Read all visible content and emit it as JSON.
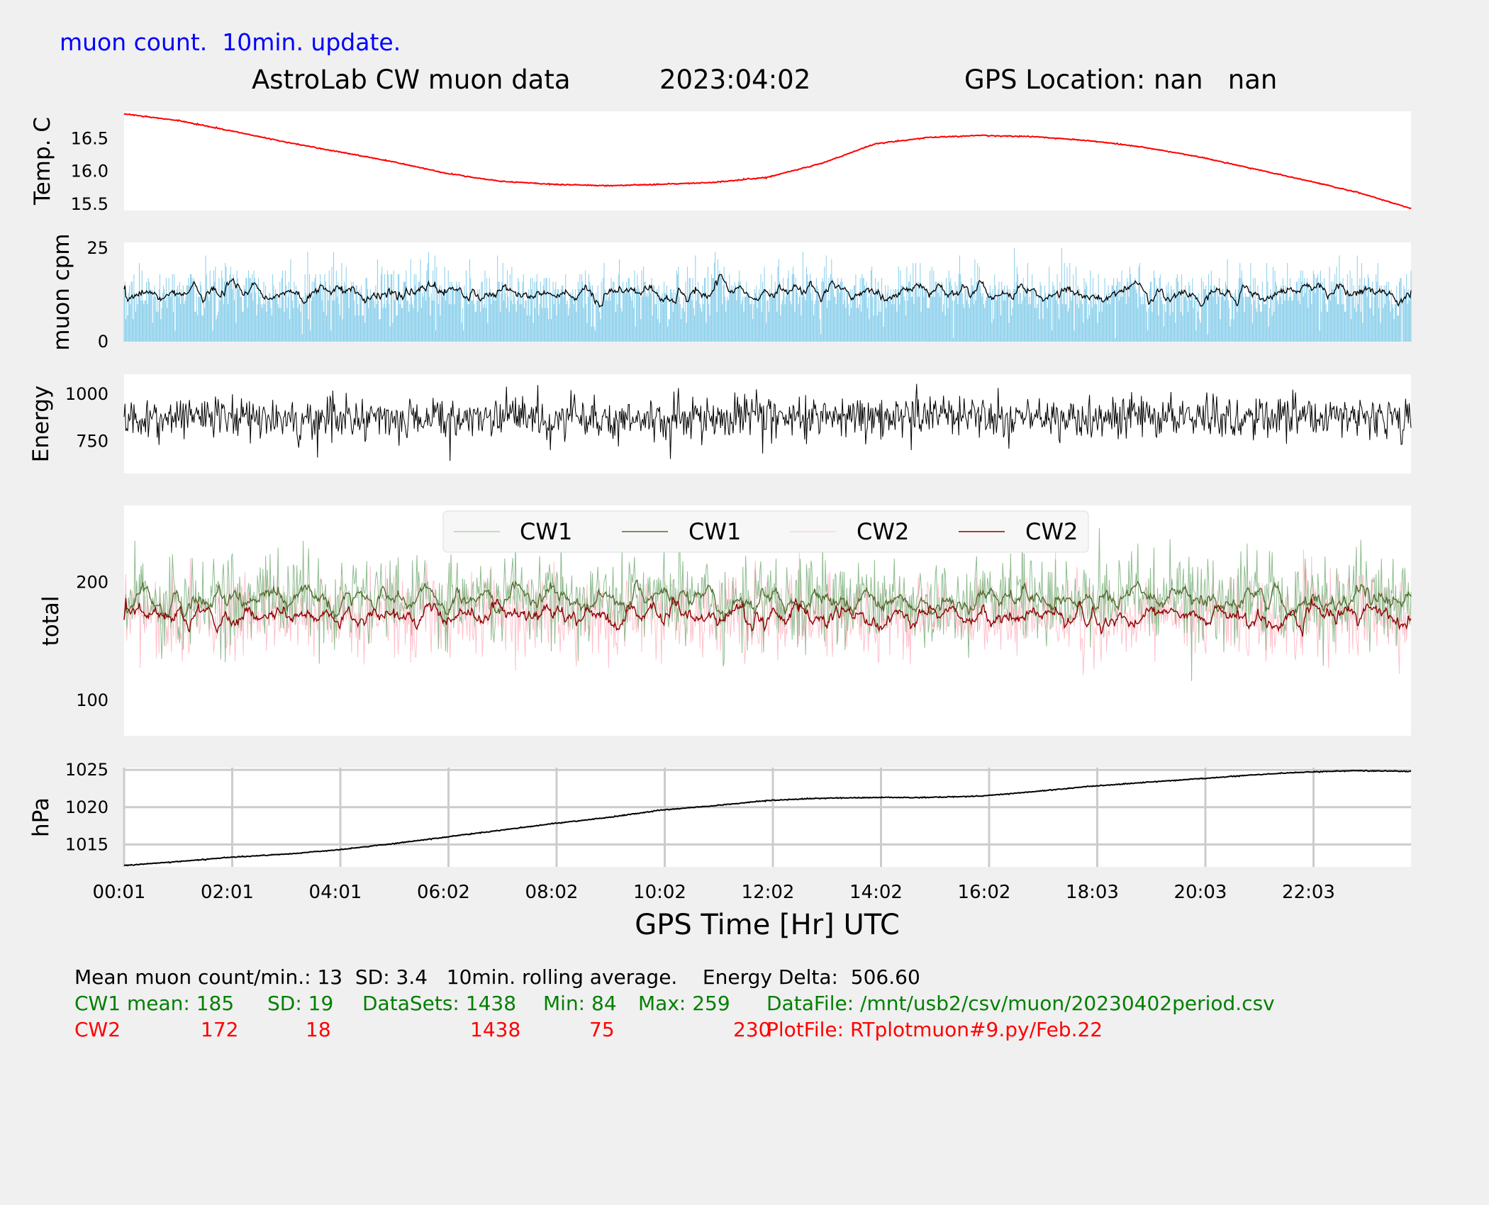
{
  "header": {
    "update_note": "muon count.  10min. update.",
    "title": "AstroLab CW muon data",
    "date": "2023:04:02",
    "gps_location": "GPS Location: nan   nan"
  },
  "colors": {
    "temp_line": "#ff0000",
    "muon_bars": "#87ceeb",
    "cw1_raw": "#8fbc8f",
    "cw1_avg": "#556b2f",
    "cw2_raw": "#ffc0cb",
    "cw2_avg": "#8b0000",
    "background": "#f0f0f0",
    "grid": "#cccccc",
    "footer_black": "#000000",
    "footer_green": "#008000",
    "footer_red": "#ff0000",
    "note_blue": "#0000ff"
  },
  "chart_data": [
    {
      "type": "line",
      "ylabel": "Temp. C",
      "yticks": [
        15.5,
        16.0,
        16.5
      ],
      "ylim": [
        15.4,
        16.92
      ],
      "x": [
        0,
        1,
        2,
        3,
        4,
        5,
        6,
        7,
        8,
        9,
        10,
        11,
        12,
        13,
        14,
        15,
        16,
        17,
        18,
        19,
        20,
        21,
        22,
        23,
        24
      ],
      "series": [
        {
          "values": [
            16.88,
            16.78,
            16.62,
            16.45,
            16.3,
            16.15,
            15.97,
            15.85,
            15.8,
            15.78,
            15.8,
            15.83,
            15.91,
            16.12,
            16.42,
            16.52,
            16.55,
            16.53,
            16.47,
            16.37,
            16.23,
            16.05,
            15.87,
            15.68,
            15.43
          ]
        }
      ]
    },
    {
      "type": "bar",
      "ylabel": "muon cpm",
      "yticks": [
        0,
        25
      ],
      "ylim": [
        0,
        26.5
      ],
      "mean": 13,
      "sd": 3.4,
      "rolling_window": "10min.",
      "series": [
        {
          "values": []
        },
        {
          "values": []
        }
      ]
    },
    {
      "type": "line",
      "ylabel": "Energy",
      "yticks": [
        750,
        1000
      ],
      "ylim": [
        580,
        1105
      ],
      "series": [
        {
          "values": []
        }
      ]
    },
    {
      "type": "line",
      "ylabel": "total",
      "yticks": [
        100,
        200
      ],
      "ylim": [
        70,
        265
      ],
      "legend": [
        "CW1",
        "CW1",
        "CW2",
        "CW2"
      ],
      "legend_position": "top-center",
      "series": [
        {
          "name": "CW1",
          "mean": 185,
          "sd": 19,
          "min": 84,
          "max": 259
        },
        {
          "name": "CW1"
        },
        {
          "name": "CW2",
          "mean": 172,
          "sd": 18,
          "min": 75,
          "max": 230
        },
        {
          "name": "CW2"
        }
      ]
    },
    {
      "type": "line",
      "ylabel": "hPa",
      "yticks": [
        1015,
        1020,
        1025
      ],
      "ylim": [
        1012.0,
        1025.3
      ],
      "grid": true,
      "x": [
        0,
        1,
        2,
        3,
        4,
        5,
        6,
        7,
        8,
        9,
        10,
        11,
        12,
        13,
        14,
        15,
        16,
        17,
        18,
        19,
        20,
        21,
        22,
        23,
        24
      ],
      "series": [
        {
          "values": [
            1012.2,
            1012.7,
            1013.3,
            1013.7,
            1014.3,
            1015.1,
            1016.0,
            1016.9,
            1017.8,
            1018.6,
            1019.6,
            1020.2,
            1020.9,
            1021.2,
            1021.3,
            1021.3,
            1021.5,
            1022.1,
            1022.8,
            1023.3,
            1023.8,
            1024.3,
            1024.7,
            1024.9,
            1024.8
          ]
        }
      ]
    }
  ],
  "xaxis": {
    "label": "GPS Time  [Hr] UTC",
    "ticks": [
      "00:01",
      "02:01",
      "04:01",
      "06:02",
      "08:02",
      "10:02",
      "12:02",
      "14:02",
      "16:02",
      "18:03",
      "20:03",
      "22:03"
    ]
  },
  "footer": {
    "line1": "Mean muon count/min.: 13  SD: 3.4   10min. rolling average.    Energy Delta:  506.60",
    "cw1_label": "CW1 mean: 185",
    "cw1_sd": "SD: 19",
    "cw1_datasets": "DataSets: 1438",
    "cw1_min": "Min: 84",
    "cw1_max": "Max: 259",
    "datafile": "DataFile: /mnt/usb2/csv/muon/20230402period.csv",
    "cw2_label": "CW2",
    "cw2_mean": "172",
    "cw2_sd": "18",
    "cw2_datasets": "1438",
    "cw2_min": "75",
    "cw2_max": "230",
    "plotfile": "PlotFile: RTplotmuon#9.py/Feb.22"
  }
}
